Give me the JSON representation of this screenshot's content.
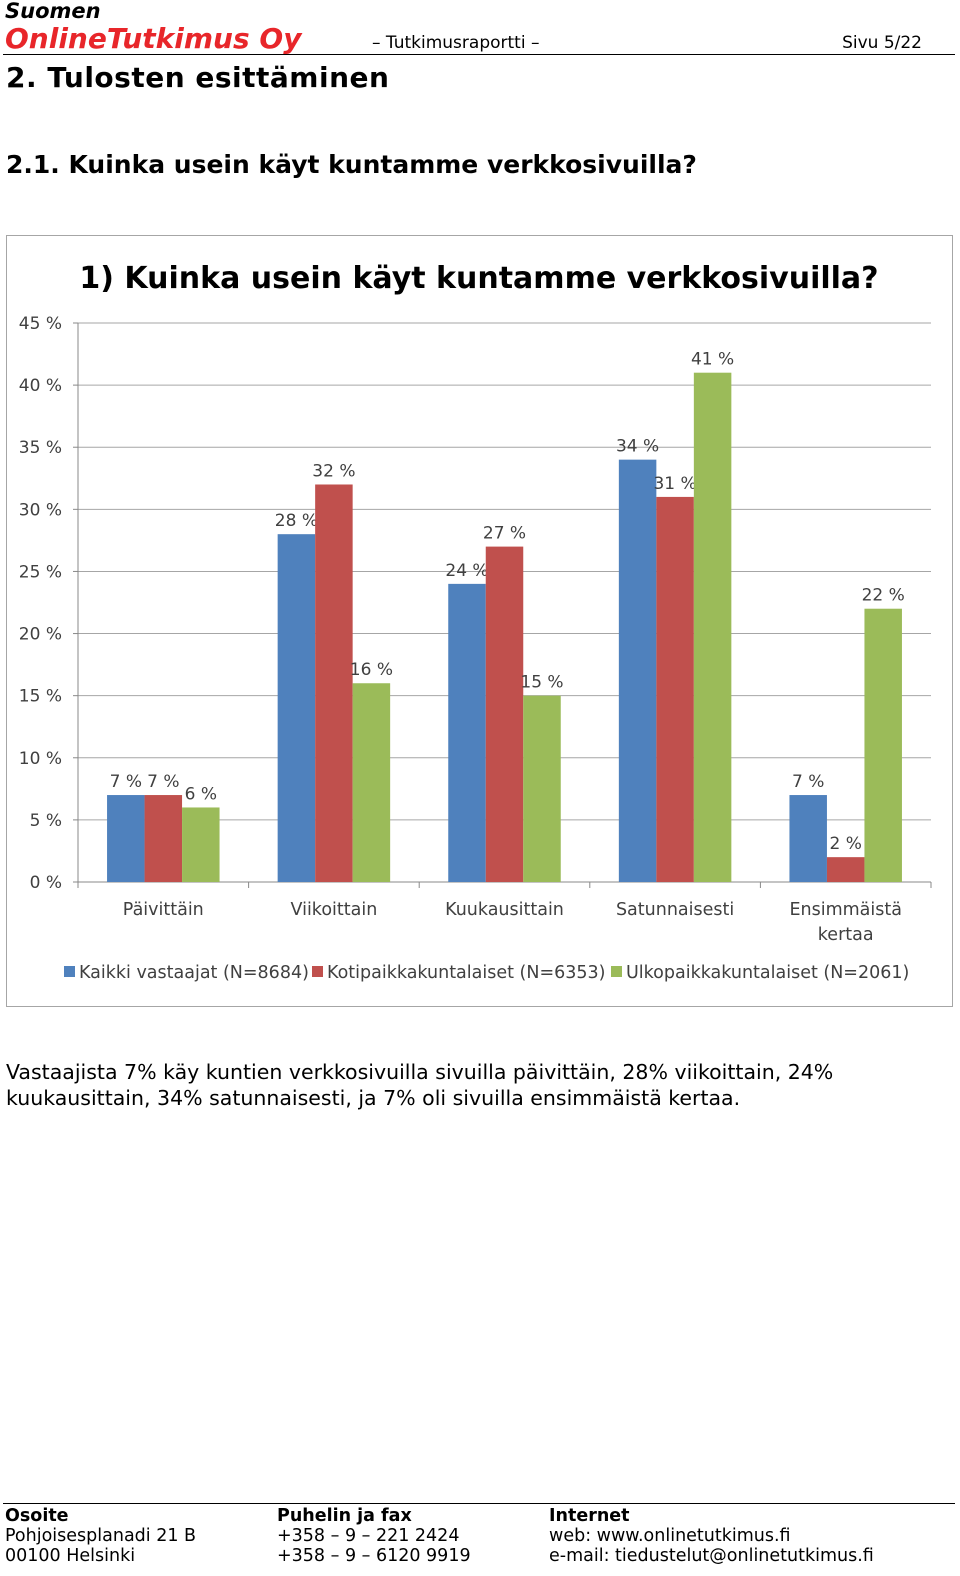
{
  "header": {
    "company_line1": "Suomen",
    "company_line2": "OnlineTutkimus Oy",
    "report_type": "– Tutkimusraportti –",
    "page_number": "Sivu 5/22"
  },
  "section_title": "2. Tulosten esittäminen",
  "subsection_title": "2.1. Kuinka usein käyt kuntamme verkkosivuilla?",
  "chart_data": {
    "type": "bar",
    "title": "1) Kuinka usein käyt kuntamme verkkosivuilla?",
    "categories": [
      "Päivittäin",
      "Viikoittain",
      "Kuukausittain",
      "Satunnaisesti",
      "Ensimmäistä kertaa"
    ],
    "series": [
      {
        "name": "Kaikki vastaajat (N=8684)",
        "color": "#4f81bd",
        "values": [
          7,
          28,
          24,
          34,
          7
        ],
        "labels": [
          "7 %",
          "28 %",
          "24 %",
          "34 %",
          "7 %"
        ]
      },
      {
        "name": "Kotipaikkakuntalaiset (N=6353)",
        "color": "#c0504d",
        "values": [
          7,
          32,
          27,
          31,
          2
        ],
        "labels": [
          "7 %",
          "32 %",
          "27 %",
          "31 %",
          "2 %"
        ]
      },
      {
        "name": "Ulkopaikkakuntalaiset (N=2061)",
        "color": "#9bbb59",
        "values": [
          6,
          16,
          15,
          41,
          22
        ],
        "labels": [
          "6 %",
          "16 %",
          "15 %",
          "41 %",
          "22 %"
        ]
      }
    ],
    "ylim": [
      0,
      45
    ],
    "yticks": [
      0,
      5,
      10,
      15,
      20,
      25,
      30,
      35,
      40,
      45
    ],
    "ytick_labels": [
      "0 %",
      "5 %",
      "10 %",
      "15 %",
      "20 %",
      "25 %",
      "30 %",
      "35 %",
      "40 %",
      "45 %"
    ],
    "grid": true,
    "legend_position": "bottom"
  },
  "body_text": "Vastaajista 7% käy kuntien verkkosivuilla sivuilla päivittäin, 28% viikoittain, 24% kuukausittain, 34% satunnaisesti, ja 7% oli sivuilla ensimmäistä kertaa.",
  "footer": {
    "address": {
      "heading": "Osoite",
      "line1": "Pohjoisesplanadi 21 B",
      "line2": "00100 Helsinki"
    },
    "phone": {
      "heading": "Puhelin ja fax",
      "line1": "+358 – 9 – 221 2424",
      "line2": "+358 – 9 – 6120 9919"
    },
    "internet": {
      "heading": "Internet",
      "line1": "web: www.onlinetutkimus.fi",
      "line2": "e-mail: tiedustelut@onlinetutkimus.fi"
    }
  }
}
